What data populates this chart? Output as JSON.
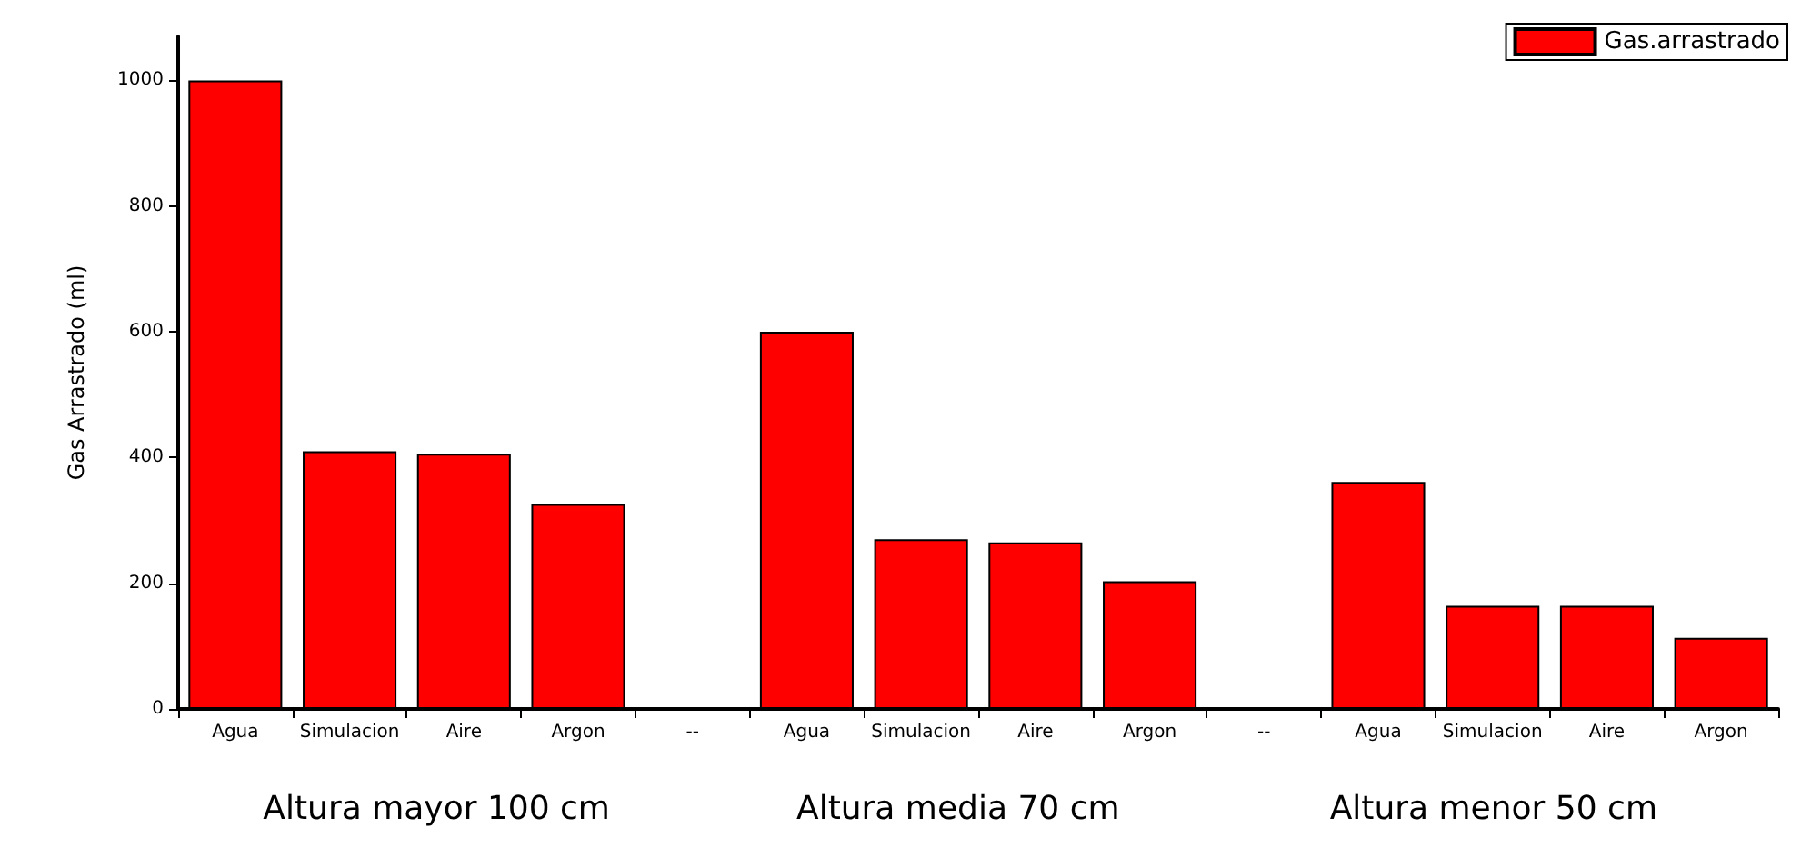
{
  "chart_data": {
    "type": "bar",
    "ylabel": "Gas Arrastrado (ml)",
    "categories": [
      "Agua",
      "Simulacion",
      "Aire",
      "Argon",
      "--",
      "Agua",
      "Simulacion",
      "Aire",
      "Argon",
      "--",
      "Agua",
      "Simulacion",
      "Aire",
      "Argon"
    ],
    "series": [
      {
        "name": "Gas.arrastrado",
        "color": "#ff0000",
        "values": [
          1000,
          410,
          406,
          326,
          null,
          600,
          270,
          265,
          203,
          null,
          361,
          164,
          164,
          113
        ]
      }
    ],
    "ylim": [
      0,
      1070
    ],
    "yticks": [
      0,
      200,
      400,
      600,
      800,
      1000
    ],
    "grid": false,
    "legend": "top right",
    "annotations": [
      "Altura mayor 100 cm",
      "Altura media 70 cm",
      "Altura menor 50 cm"
    ]
  }
}
